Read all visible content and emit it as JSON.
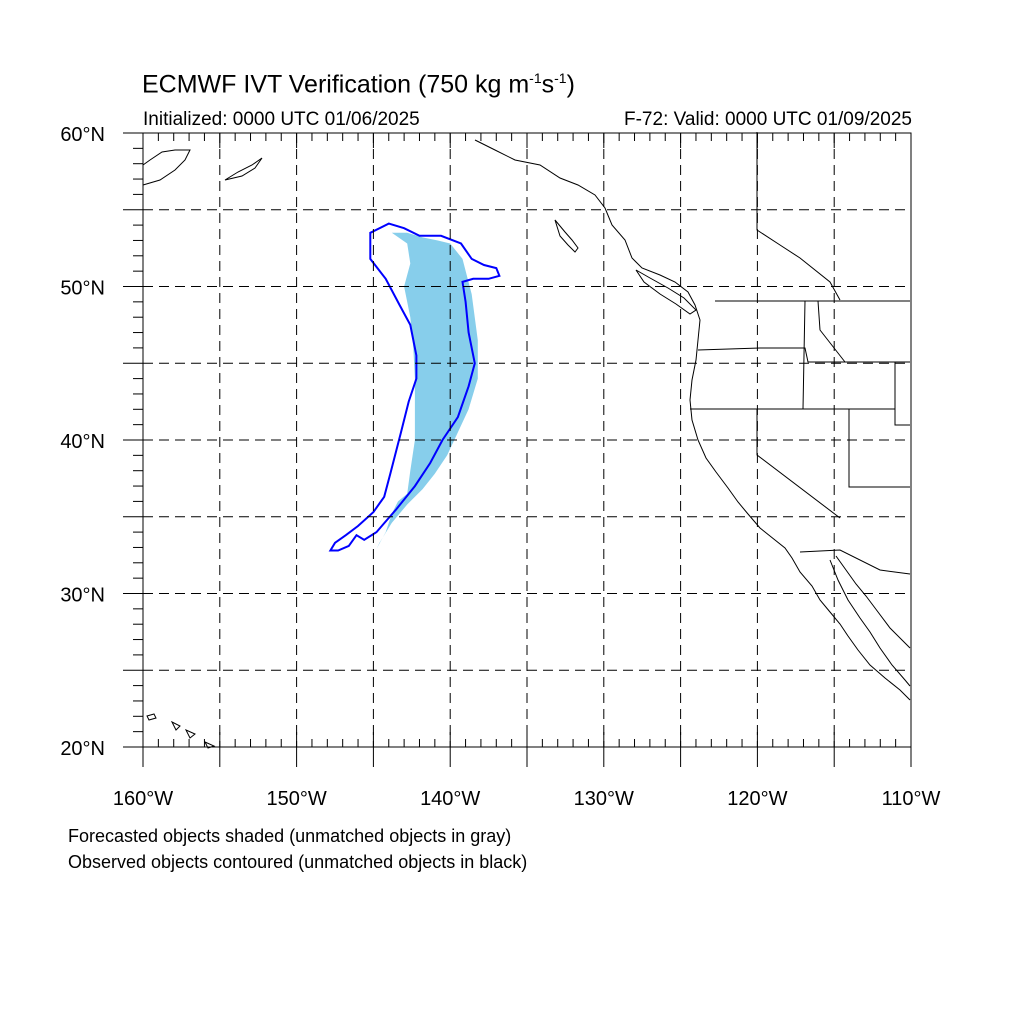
{
  "header": {
    "title_main": "ECMWF IVT Verification (750 kg m",
    "title_sup1": "-1",
    "title_mid": "s",
    "title_sup2": "-1",
    "title_end": ")",
    "initialized": "Initialized: 0000 UTC 01/06/2025",
    "valid": "F-72: Valid: 0000 UTC 01/09/2025"
  },
  "map": {
    "lon_range": [
      -160,
      -110
    ],
    "lat_range": [
      20,
      60
    ],
    "lat_labels": [
      "20°N",
      "30°N",
      "40°N",
      "50°N",
      "60°N"
    ],
    "lon_labels": [
      "160°W",
      "150°W",
      "140°W",
      "130°W",
      "120°W",
      "110°W"
    ],
    "forecast_color": "#87ceeb",
    "observed_color": "#0000ff",
    "forecast_object": [
      [
        -143.8,
        53.5
      ],
      [
        -142.8,
        53.5
      ],
      [
        -141.8,
        53.2
      ],
      [
        -140.8,
        53.0
      ],
      [
        -140.0,
        52.8
      ],
      [
        -139.2,
        51.8
      ],
      [
        -138.6,
        49.5
      ],
      [
        -138.2,
        46.5
      ],
      [
        -138.2,
        44.0
      ],
      [
        -138.8,
        42.0
      ],
      [
        -139.5,
        40.5
      ],
      [
        -140.2,
        39.0
      ],
      [
        -141.0,
        37.8
      ],
      [
        -141.8,
        36.8
      ],
      [
        -142.8,
        35.8
      ],
      [
        -143.8,
        34.6
      ],
      [
        -144.6,
        33.3
      ],
      [
        -144.8,
        32.9
      ],
      [
        -144.2,
        34.0
      ],
      [
        -143.8,
        35.2
      ],
      [
        -143.4,
        36.0
      ],
      [
        -142.8,
        36.5
      ],
      [
        -142.6,
        38.0
      ],
      [
        -142.3,
        40.0
      ],
      [
        -142.3,
        42.0
      ],
      [
        -142.3,
        44.0
      ],
      [
        -142.4,
        46.0
      ],
      [
        -142.6,
        48.0
      ],
      [
        -143.0,
        50.0
      ],
      [
        -142.6,
        51.5
      ],
      [
        -142.8,
        52.8
      ],
      [
        -143.8,
        53.5
      ]
    ],
    "observed_contour": [
      [
        -145.2,
        53.5
      ],
      [
        -144.0,
        54.1
      ],
      [
        -143.0,
        53.8
      ],
      [
        -142.0,
        53.3
      ],
      [
        -140.6,
        53.3
      ],
      [
        -139.3,
        52.8
      ],
      [
        -138.6,
        51.8
      ],
      [
        -137.8,
        51.4
      ],
      [
        -137.0,
        51.2
      ],
      [
        -136.8,
        50.7
      ],
      [
        -137.5,
        50.5
      ],
      [
        -138.5,
        50.5
      ],
      [
        -139.2,
        50.3
      ],
      [
        -139.0,
        49.0
      ],
      [
        -138.8,
        47.0
      ],
      [
        -138.4,
        45.0
      ],
      [
        -138.8,
        43.5
      ],
      [
        -139.5,
        41.5
      ],
      [
        -140.5,
        40.0
      ],
      [
        -141.3,
        38.5
      ],
      [
        -142.3,
        37.0
      ],
      [
        -143.5,
        35.5
      ],
      [
        -144.8,
        34.0
      ],
      [
        -145.6,
        33.5
      ],
      [
        -146.1,
        33.8
      ],
      [
        -146.6,
        33.1
      ],
      [
        -147.3,
        32.8
      ],
      [
        -147.8,
        32.8
      ],
      [
        -147.5,
        33.3
      ],
      [
        -146.8,
        33.8
      ],
      [
        -146.0,
        34.4
      ],
      [
        -145.0,
        35.3
      ],
      [
        -144.3,
        36.3
      ],
      [
        -143.9,
        37.8
      ],
      [
        -143.2,
        40.5
      ],
      [
        -142.7,
        42.5
      ],
      [
        -142.2,
        44.0
      ],
      [
        -142.2,
        45.5
      ],
      [
        -142.6,
        47.5
      ],
      [
        -143.3,
        48.8
      ],
      [
        -144.2,
        50.5
      ],
      [
        -145.2,
        51.8
      ],
      [
        -145.2,
        53.5
      ]
    ]
  },
  "notes": {
    "line1": "Forecasted objects shaded (unmatched objects in gray)",
    "line2": "Observed objects contoured (unmatched objects in black)"
  }
}
